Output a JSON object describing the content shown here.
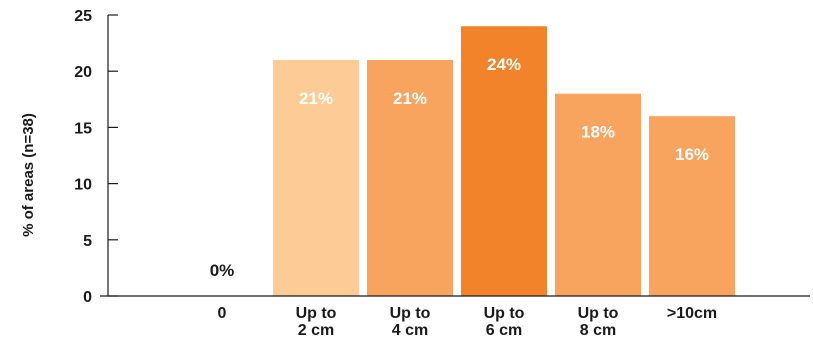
{
  "chart_data": {
    "type": "bar",
    "title": "",
    "xlabel": "",
    "ylabel": "% of areas (n=38)",
    "ylim": [
      0,
      25
    ],
    "yticks": [
      0,
      5,
      10,
      15,
      20,
      25
    ],
    "categories": [
      [
        "0"
      ],
      [
        "Up to",
        "2 cm"
      ],
      [
        "Up to",
        "4 cm"
      ],
      [
        "Up to",
        "6 cm"
      ],
      [
        "Up to",
        "8 cm"
      ],
      [
        ">10cm"
      ]
    ],
    "values": [
      0,
      21,
      21,
      24,
      18,
      16
    ],
    "data_labels": [
      "0%",
      "21%",
      "21%",
      "24%",
      "18%",
      "16%"
    ],
    "bar_colors": [
      "#FCCB96",
      "#FCCB96",
      "#F8A45F",
      "#F3832A",
      "#F8A45F",
      "#F8A45F"
    ],
    "grid": false,
    "legend": "none"
  }
}
